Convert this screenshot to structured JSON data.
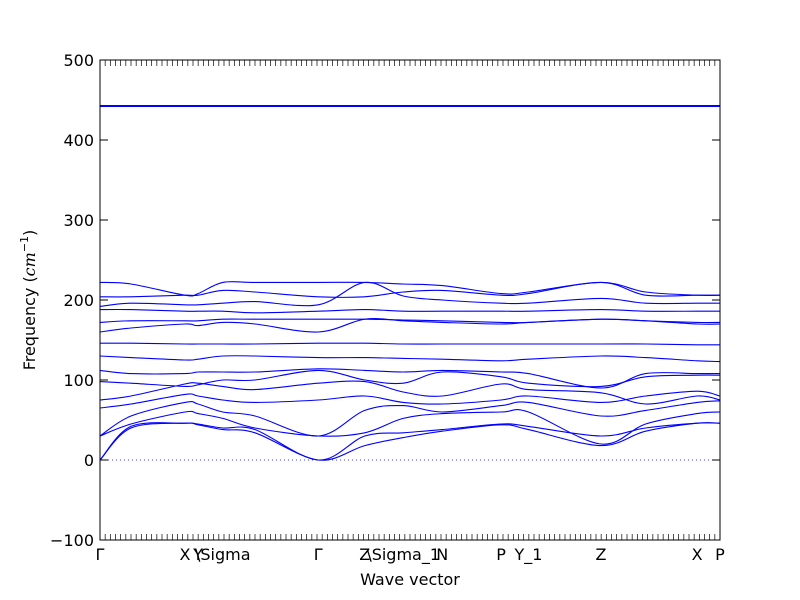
{
  "chart_data": {
    "type": "line",
    "xlabel": "Wave vector",
    "ylabel_text": "Frequency (",
    "ylabel_unit_main": "cm",
    "ylabel_unit_sup": "−1",
    "ylabel_close": ")",
    "ylim": [
      -100,
      500
    ],
    "yticks": [
      -100,
      0,
      100,
      200,
      300,
      400,
      500
    ],
    "ytick_labels": [
      "−100",
      "0",
      "100",
      "200",
      "300",
      "400",
      "500"
    ],
    "xlim": [
      0,
      1
    ],
    "xticks": [
      {
        "pos": 0.0,
        "label": "Γ"
      },
      {
        "pos": 0.137,
        "label": "X"
      },
      {
        "pos": 0.158,
        "label": "Y"
      },
      {
        "pos": 0.198,
        "label": "\\Sigma"
      },
      {
        "pos": 0.352,
        "label": "Γ"
      },
      {
        "pos": 0.427,
        "label": "Z"
      },
      {
        "pos": 0.489,
        "label": "\\Sigma_1"
      },
      {
        "pos": 0.552,
        "label": "N"
      },
      {
        "pos": 0.647,
        "label": "P"
      },
      {
        "pos": 0.691,
        "label": "Y_1"
      },
      {
        "pos": 0.808,
        "label": "Z"
      },
      {
        "pos": 0.963,
        "label": "X"
      },
      {
        "pos": 1.0,
        "label": "P"
      }
    ],
    "zero_line": true,
    "series_color": "#0000ff",
    "series": [
      {
        "x": [
          0,
          0.05,
          0.137,
          0.158,
          0.198,
          0.25,
          0.352,
          0.427,
          0.489,
          0.552,
          0.647,
          0.691,
          0.808,
          0.88,
          0.963,
          1.0
        ],
        "y": [
          0,
          42,
          46,
          45,
          40,
          38,
          0,
          30,
          34,
          38,
          45,
          42,
          30,
          40,
          46,
          46
        ]
      },
      {
        "x": [
          0,
          0.05,
          0.137,
          0.158,
          0.198,
          0.25,
          0.352,
          0.427,
          0.489,
          0.552,
          0.647,
          0.691,
          0.808,
          0.88,
          0.963,
          1.0
        ],
        "y": [
          0,
          40,
          46,
          44,
          38,
          34,
          0,
          18,
          28,
          36,
          44,
          38,
          18,
          36,
          46,
          46
        ]
      },
      {
        "x": [
          0,
          0.05,
          0.137,
          0.158,
          0.198,
          0.25,
          0.352,
          0.427,
          0.489,
          0.552,
          0.647,
          0.691,
          0.808,
          0.88,
          0.963,
          1.0
        ],
        "y": [
          30,
          45,
          60,
          58,
          52,
          40,
          30,
          34,
          52,
          58,
          60,
          60,
          20,
          45,
          58,
          60
        ]
      },
      {
        "x": [
          0,
          0.05,
          0.137,
          0.158,
          0.198,
          0.25,
          0.352,
          0.427,
          0.489,
          0.552,
          0.647,
          0.691,
          0.808,
          0.88,
          0.963,
          1.0
        ],
        "y": [
          30,
          55,
          72,
          70,
          60,
          55,
          30,
          62,
          68,
          60,
          68,
          72,
          55,
          62,
          72,
          74
        ]
      },
      {
        "x": [
          0,
          0.05,
          0.137,
          0.158,
          0.198,
          0.25,
          0.352,
          0.427,
          0.489,
          0.552,
          0.647,
          0.691,
          0.808,
          0.88,
          0.963,
          1.0
        ],
        "y": [
          65,
          70,
          82,
          80,
          75,
          72,
          75,
          80,
          72,
          70,
          75,
          80,
          72,
          80,
          86,
          80
        ]
      },
      {
        "x": [
          0,
          0.05,
          0.137,
          0.158,
          0.198,
          0.25,
          0.352,
          0.427,
          0.489,
          0.552,
          0.647,
          0.691,
          0.808,
          0.88,
          0.963,
          1.0
        ],
        "y": [
          75,
          80,
          95,
          96,
          92,
          88,
          96,
          98,
          85,
          80,
          95,
          88,
          84,
          70,
          80,
          75
        ]
      },
      {
        "x": [
          0,
          0.05,
          0.137,
          0.158,
          0.198,
          0.25,
          0.352,
          0.427,
          0.489,
          0.552,
          0.647,
          0.691,
          0.808,
          0.88,
          0.963,
          1.0
        ],
        "y": [
          98,
          96,
          92,
          94,
          100,
          100,
          112,
          100,
          96,
          110,
          104,
          96,
          92,
          104,
          106,
          106
        ]
      },
      {
        "x": [
          0,
          0.05,
          0.137,
          0.158,
          0.198,
          0.25,
          0.352,
          0.427,
          0.489,
          0.552,
          0.647,
          0.691,
          0.808,
          0.88,
          0.963,
          1.0
        ],
        "y": [
          112,
          108,
          108,
          110,
          110,
          110,
          114,
          112,
          110,
          112,
          110,
          108,
          90,
          108,
          108,
          108
        ]
      },
      {
        "x": [
          0,
          0.05,
          0.137,
          0.158,
          0.198,
          0.25,
          0.352,
          0.427,
          0.489,
          0.552,
          0.647,
          0.691,
          0.808,
          0.88,
          0.963,
          1.0
        ],
        "y": [
          130,
          128,
          125,
          126,
          130,
          130,
          128,
          128,
          127,
          126,
          124,
          126,
          130,
          128,
          124,
          123
        ]
      },
      {
        "x": [
          0,
          0.05,
          0.137,
          0.158,
          0.198,
          0.25,
          0.352,
          0.427,
          0.489,
          0.552,
          0.647,
          0.691,
          0.808,
          0.88,
          0.963,
          1.0
        ],
        "y": [
          146,
          146,
          145,
          145,
          145,
          145,
          146,
          146,
          145,
          145,
          145,
          145,
          145,
          145,
          144,
          144
        ]
      },
      {
        "x": [
          0,
          0.05,
          0.137,
          0.158,
          0.198,
          0.25,
          0.352,
          0.427,
          0.489,
          0.552,
          0.647,
          0.691,
          0.808,
          0.88,
          0.963,
          1.0
        ],
        "y": [
          160,
          165,
          170,
          168,
          172,
          170,
          160,
          176,
          174,
          172,
          170,
          172,
          176,
          174,
          170,
          170
        ]
      },
      {
        "x": [
          0,
          0.05,
          0.137,
          0.158,
          0.198,
          0.25,
          0.352,
          0.427,
          0.489,
          0.552,
          0.647,
          0.691,
          0.808,
          0.88,
          0.963,
          1.0
        ],
        "y": [
          172,
          174,
          174,
          174,
          176,
          176,
          176,
          176,
          175,
          174,
          172,
          172,
          176,
          174,
          172,
          172
        ]
      },
      {
        "x": [
          0,
          0.05,
          0.137,
          0.158,
          0.198,
          0.25,
          0.352,
          0.427,
          0.489,
          0.552,
          0.647,
          0.691,
          0.808,
          0.88,
          0.963,
          1.0
        ],
        "y": [
          188,
          188,
          186,
          186,
          186,
          184,
          186,
          188,
          186,
          186,
          186,
          186,
          188,
          186,
          186,
          186
        ]
      },
      {
        "x": [
          0,
          0.05,
          0.137,
          0.158,
          0.198,
          0.25,
          0.352,
          0.427,
          0.489,
          0.552,
          0.647,
          0.691,
          0.808,
          0.88,
          0.963,
          1.0
        ],
        "y": [
          192,
          196,
          194,
          194,
          196,
          198,
          194,
          222,
          205,
          200,
          196,
          196,
          202,
          196,
          196,
          196
        ]
      },
      {
        "x": [
          0,
          0.05,
          0.137,
          0.158,
          0.198,
          0.25,
          0.352,
          0.427,
          0.489,
          0.552,
          0.647,
          0.691,
          0.808,
          0.88,
          0.963,
          1.0
        ],
        "y": [
          204,
          204,
          206,
          206,
          212,
          210,
          204,
          204,
          210,
          212,
          206,
          208,
          222,
          206,
          206,
          206
        ]
      },
      {
        "x": [
          0,
          0.05,
          0.137,
          0.158,
          0.198,
          0.25,
          0.352,
          0.427,
          0.489,
          0.552,
          0.647,
          0.691,
          0.808,
          0.88,
          0.963,
          1.0
        ],
        "y": [
          222,
          220,
          206,
          208,
          222,
          222,
          222,
          222,
          220,
          218,
          208,
          210,
          222,
          210,
          206,
          206
        ]
      },
      {
        "x": [
          0,
          0.05,
          0.137,
          0.158,
          0.198,
          0.25,
          0.352,
          0.427,
          0.489,
          0.552,
          0.647,
          0.691,
          0.808,
          0.88,
          0.963,
          1.0
        ],
        "y": [
          442,
          442,
          442,
          442,
          442,
          442,
          442,
          442,
          442,
          442,
          442,
          442,
          442,
          442,
          442,
          442
        ]
      },
      {
        "x": [
          0,
          0.05,
          0.137,
          0.158,
          0.198,
          0.25,
          0.352,
          0.427,
          0.489,
          0.552,
          0.647,
          0.691,
          0.808,
          0.88,
          0.963,
          1.0
        ],
        "y": [
          443,
          443,
          443,
          443,
          443,
          443,
          443,
          443,
          443,
          443,
          443,
          443,
          443,
          443,
          443,
          443
        ]
      }
    ]
  }
}
